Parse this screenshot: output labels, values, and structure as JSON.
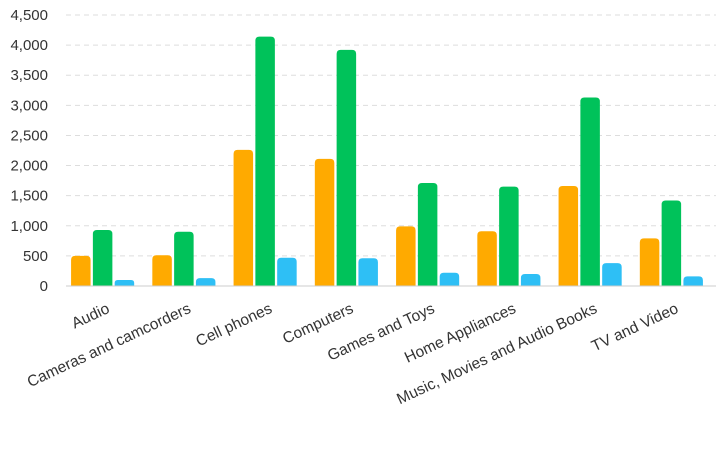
{
  "chart_data": {
    "type": "bar",
    "categories": [
      "Audio",
      "Cameras and camcorders",
      "Cell phones",
      "Computers",
      "Games and Toys",
      "Home Appliances",
      "Music, Movies and Audio Books",
      "TV and Video"
    ],
    "series": [
      {
        "color": "#FFAA00",
        "values": [
          500,
          510,
          2260,
          2110,
          990,
          910,
          1660,
          790
        ]
      },
      {
        "color": "#00C25A",
        "values": [
          930,
          900,
          4140,
          3920,
          1710,
          1650,
          3130,
          1420
        ]
      },
      {
        "color": "#2EBFF5",
        "values": [
          100,
          130,
          470,
          460,
          220,
          200,
          380,
          160
        ]
      }
    ],
    "yticks": [
      "0",
      "500",
      "1,000",
      "1,500",
      "2,000",
      "2,500",
      "3,000",
      "3,500",
      "4,000",
      "4,500"
    ],
    "ylim": [
      0,
      4500
    ],
    "grid": true,
    "title": "",
    "xlabel": "",
    "ylabel": ""
  }
}
